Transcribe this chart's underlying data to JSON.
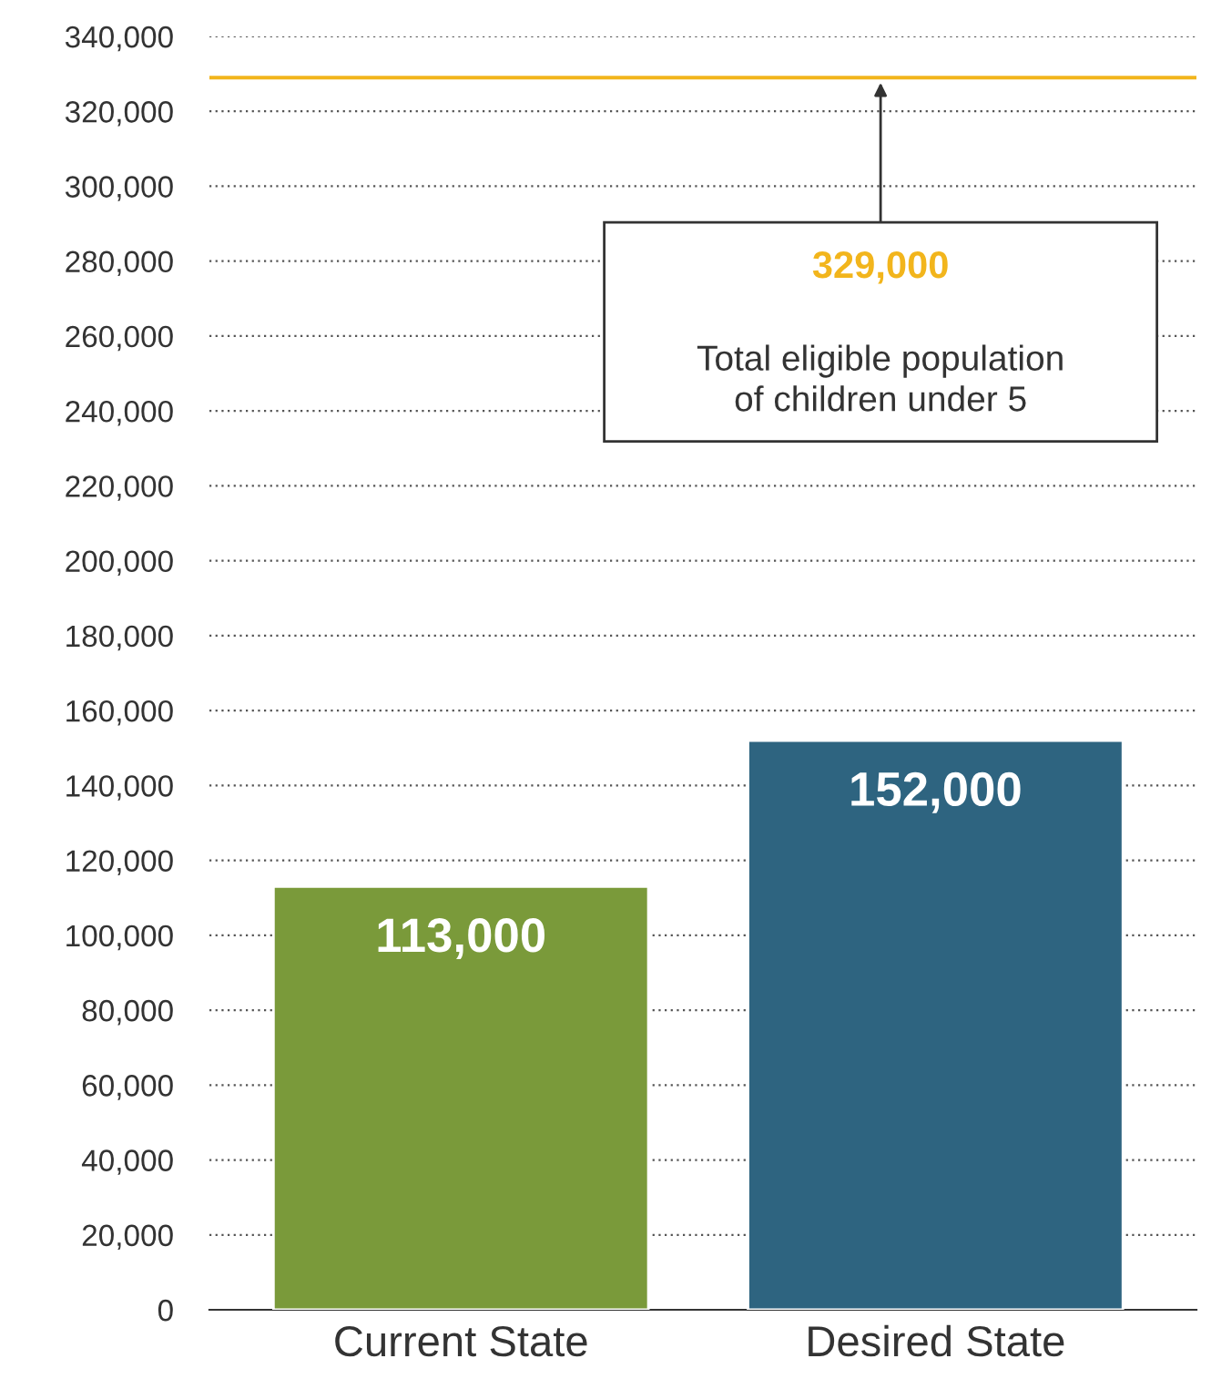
{
  "chart_data": {
    "type": "bar",
    "categories": [
      "Current State",
      "Desired State"
    ],
    "series": [
      {
        "colors": [
          "#7a9a3a",
          "#2e6480"
        ],
        "values": [
          113000,
          152000
        ],
        "value_labels": [
          "113,000",
          "152,000"
        ]
      }
    ],
    "ylim": [
      0,
      340000
    ],
    "yticks": [
      {
        "value": 0,
        "label": "0"
      },
      {
        "value": 20000,
        "label": "20,000"
      },
      {
        "value": 40000,
        "label": "40,000"
      },
      {
        "value": 60000,
        "label": "60,000"
      },
      {
        "value": 80000,
        "label": "80,000"
      },
      {
        "value": 100000,
        "label": "100,000"
      },
      {
        "value": 120000,
        "label": "120,000"
      },
      {
        "value": 140000,
        "label": "140,000"
      },
      {
        "value": 160000,
        "label": "160,000"
      },
      {
        "value": 180000,
        "label": "180,000"
      },
      {
        "value": 200000,
        "label": "200,000"
      },
      {
        "value": 220000,
        "label": "220,000"
      },
      {
        "value": 240000,
        "label": "240,000"
      },
      {
        "value": 260000,
        "label": "260,000"
      },
      {
        "value": 280000,
        "label": "280,000"
      },
      {
        "value": 300000,
        "label": "300,000"
      },
      {
        "value": 320000,
        "label": "320,000"
      },
      {
        "value": 340000,
        "label": "340,000"
      }
    ],
    "grid": "y",
    "ref_lines": [
      {
        "axis": "y",
        "value": 329000,
        "label": "329,000",
        "color": "#f2b51c"
      }
    ],
    "annotations": [
      "Total eligible population\nof children under 5"
    ]
  }
}
